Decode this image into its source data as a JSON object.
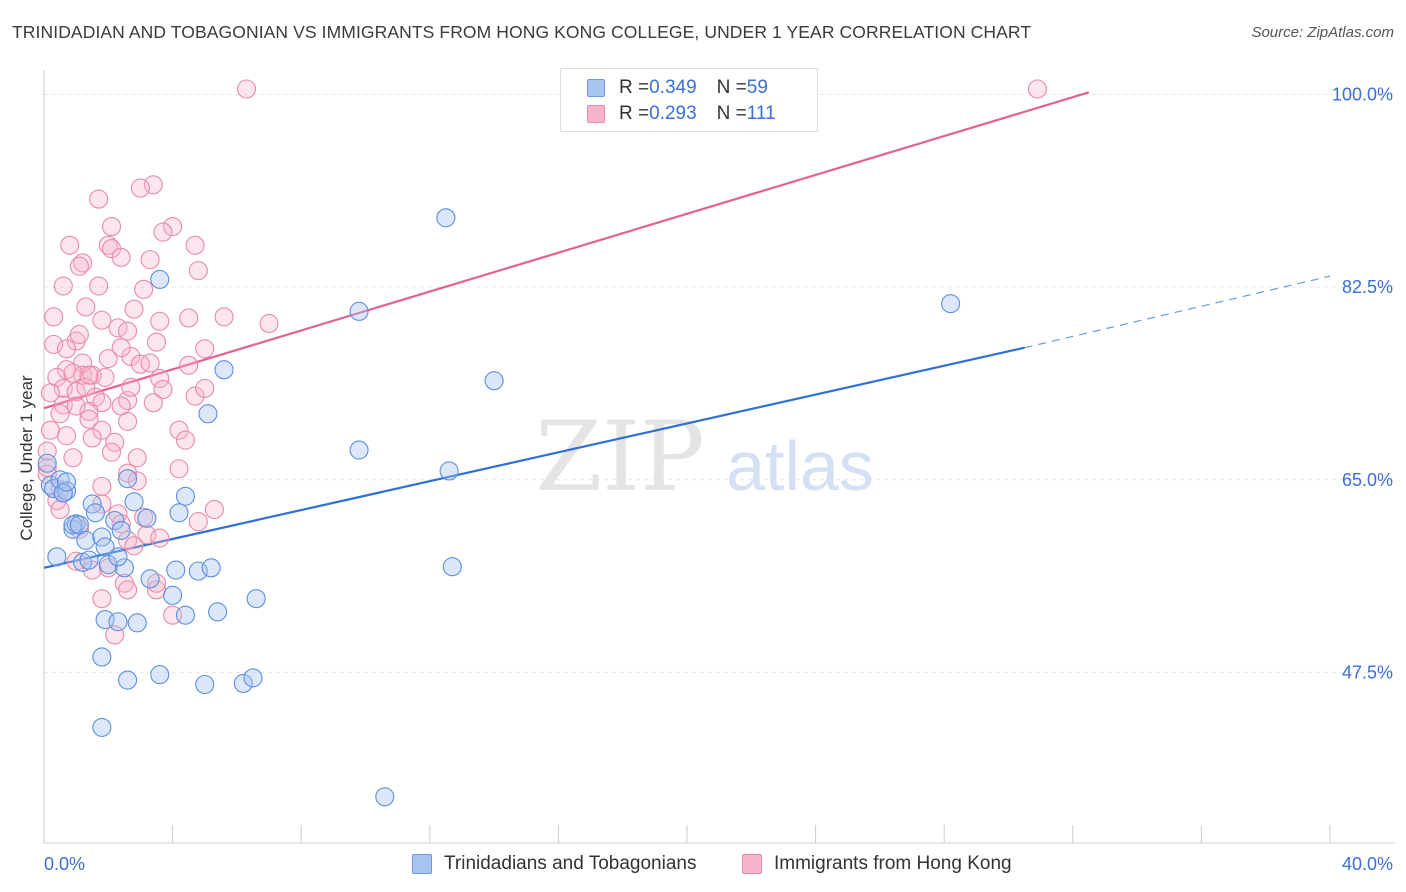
{
  "title": "TRINIDADIAN AND TOBAGONIAN VS IMMIGRANTS FROM HONG KONG COLLEGE, UNDER 1 YEAR CORRELATION CHART",
  "source": "Source: ZipAtlas.com",
  "watermark": {
    "zip": "ZIP",
    "atlas": "atlas"
  },
  "legend": {
    "row1": {
      "r_label": "R = ",
      "r_value": "0.349",
      "n_label": "N = ",
      "n_value": "59"
    },
    "row2": {
      "r_label": "R = ",
      "r_value": "0.293",
      "n_label": "N = ",
      "n_value": "111"
    }
  },
  "colors": {
    "blue": "#4a86e8",
    "blue_fill": "#a8c4f0",
    "pink": "#e86b94",
    "pink_fill": "#f5b5c8",
    "tick_label": "#3a6fd8"
  },
  "chart_data": {
    "type": "scatter",
    "title": "TRINIDADIAN AND TOBAGONIAN VS IMMIGRANTS FROM HONG KONG COLLEGE, UNDER 1 YEAR CORRELATION CHART",
    "xlabel": "",
    "ylabel": "College, Under 1 year",
    "xlim": [
      0,
      40
    ],
    "ylim": [
      32,
      101.5
    ],
    "x_tick_labels": [
      "0.0%",
      "40.0%"
    ],
    "y_ticks": [
      47.5,
      65.0,
      82.5,
      100.0
    ],
    "y_tick_labels": [
      "47.5%",
      "65.0%",
      "82.5%",
      "100.0%"
    ],
    "series": [
      {
        "name": "Trinidadians and Tobagonians",
        "color": "#4a86e8",
        "trend": {
          "x0": 0,
          "y0": 57.0,
          "x1": 30.5,
          "y1": 77.0,
          "dash_to_x": 40,
          "dash_to_y": 83.5
        },
        "points": [
          [
            0.1,
            66.5
          ],
          [
            0.2,
            64.5
          ],
          [
            0.3,
            64.2
          ],
          [
            0.5,
            65.0
          ],
          [
            0.6,
            63.8
          ],
          [
            0.4,
            58.0
          ],
          [
            0.9,
            60.5
          ],
          [
            1.0,
            61.0
          ],
          [
            1.3,
            59.5
          ],
          [
            1.2,
            57.5
          ],
          [
            1.4,
            57.7
          ],
          [
            1.5,
            62.8
          ],
          [
            1.6,
            62.0
          ],
          [
            1.8,
            59.8
          ],
          [
            2.0,
            57.3
          ],
          [
            2.2,
            61.3
          ],
          [
            2.4,
            60.4
          ],
          [
            2.5,
            57.0
          ],
          [
            2.8,
            63.0
          ],
          [
            2.6,
            65.1
          ],
          [
            3.2,
            61.5
          ],
          [
            3.3,
            56.0
          ],
          [
            3.6,
            83.2
          ],
          [
            4.2,
            62.0
          ],
          [
            4.4,
            63.5
          ],
          [
            4.1,
            56.8
          ],
          [
            4.4,
            52.7
          ],
          [
            4.0,
            54.5
          ],
          [
            4.8,
            56.7
          ],
          [
            5.2,
            57.0
          ],
          [
            5.4,
            53.0
          ],
          [
            5.1,
            71.0
          ],
          [
            5.6,
            75.0
          ],
          [
            6.6,
            54.2
          ],
          [
            6.2,
            46.5
          ],
          [
            6.5,
            47.0
          ],
          [
            1.8,
            48.9
          ],
          [
            2.6,
            46.8
          ],
          [
            3.6,
            47.3
          ],
          [
            5.0,
            46.4
          ],
          [
            1.9,
            52.3
          ],
          [
            2.9,
            52.0
          ],
          [
            2.3,
            52.1
          ],
          [
            1.8,
            42.5
          ],
          [
            10.6,
            36.2
          ],
          [
            9.8,
            67.7
          ],
          [
            12.6,
            65.8
          ],
          [
            12.5,
            88.8
          ],
          [
            12.7,
            57.1
          ],
          [
            14.0,
            74.0
          ],
          [
            9.8,
            80.3
          ],
          [
            28.2,
            81.0
          ],
          [
            0.9,
            60.9
          ],
          [
            0.7,
            64.0
          ],
          [
            2.3,
            58.0
          ],
          [
            1.9,
            58.9
          ],
          [
            1.1,
            60.9
          ],
          [
            0.6,
            63.8
          ],
          [
            0.7,
            64.8
          ]
        ]
      },
      {
        "name": "Immigrants from Hong Kong",
        "color": "#e86b94",
        "trend": {
          "x0": 0,
          "y0": 71.5,
          "x1": 32.5,
          "y1": 100.2
        },
        "points": [
          [
            6.3,
            100.5
          ],
          [
            30.9,
            100.5
          ],
          [
            3.4,
            91.8
          ],
          [
            3.0,
            91.5
          ],
          [
            1.7,
            90.5
          ],
          [
            2.1,
            88.0
          ],
          [
            4.0,
            88.0
          ],
          [
            3.7,
            87.5
          ],
          [
            0.8,
            86.3
          ],
          [
            2.0,
            86.3
          ],
          [
            2.1,
            86.0
          ],
          [
            4.7,
            86.3
          ],
          [
            2.4,
            85.2
          ],
          [
            3.3,
            85.0
          ],
          [
            1.2,
            84.7
          ],
          [
            1.1,
            84.4
          ],
          [
            4.8,
            84.0
          ],
          [
            0.6,
            82.6
          ],
          [
            1.7,
            82.6
          ],
          [
            3.1,
            82.3
          ],
          [
            1.3,
            80.7
          ],
          [
            2.8,
            80.5
          ],
          [
            0.3,
            79.8
          ],
          [
            1.8,
            79.5
          ],
          [
            3.6,
            79.4
          ],
          [
            4.5,
            79.7
          ],
          [
            5.6,
            79.8
          ],
          [
            7.0,
            79.2
          ],
          [
            2.3,
            78.8
          ],
          [
            2.6,
            78.5
          ],
          [
            3.5,
            77.5
          ],
          [
            1.0,
            77.6
          ],
          [
            0.3,
            77.3
          ],
          [
            0.7,
            76.9
          ],
          [
            2.7,
            76.2
          ],
          [
            5.0,
            76.9
          ],
          [
            2.0,
            76.0
          ],
          [
            1.2,
            75.6
          ],
          [
            3.0,
            75.5
          ],
          [
            3.3,
            75.6
          ],
          [
            4.5,
            75.4
          ],
          [
            0.7,
            75.0
          ],
          [
            0.4,
            74.3
          ],
          [
            1.2,
            74.5
          ],
          [
            1.5,
            74.5
          ],
          [
            1.9,
            74.3
          ],
          [
            3.6,
            74.2
          ],
          [
            0.6,
            73.3
          ],
          [
            1.0,
            73.0
          ],
          [
            1.3,
            73.4
          ],
          [
            0.2,
            72.9
          ],
          [
            3.7,
            73.2
          ],
          [
            1.6,
            72.5
          ],
          [
            2.6,
            72.2
          ],
          [
            4.7,
            72.6
          ],
          [
            1.8,
            72.0
          ],
          [
            0.6,
            71.8
          ],
          [
            1.0,
            71.7
          ],
          [
            1.4,
            71.2
          ],
          [
            2.4,
            71.7
          ],
          [
            3.4,
            72.0
          ],
          [
            0.5,
            71.0
          ],
          [
            1.4,
            70.5
          ],
          [
            2.6,
            70.3
          ],
          [
            0.2,
            69.5
          ],
          [
            1.8,
            69.5
          ],
          [
            4.2,
            69.5
          ],
          [
            0.7,
            69.0
          ],
          [
            1.5,
            68.8
          ],
          [
            2.2,
            68.4
          ],
          [
            4.4,
            68.6
          ],
          [
            0.1,
            67.6
          ],
          [
            2.1,
            67.5
          ],
          [
            0.9,
            67.0
          ],
          [
            2.9,
            67.0
          ],
          [
            0.1,
            66.1
          ],
          [
            0.1,
            65.5
          ],
          [
            2.6,
            65.6
          ],
          [
            4.2,
            66.0
          ],
          [
            2.9,
            64.9
          ],
          [
            0.4,
            63.1
          ],
          [
            1.8,
            62.8
          ],
          [
            0.5,
            62.3
          ],
          [
            2.3,
            61.9
          ],
          [
            5.3,
            62.3
          ],
          [
            2.4,
            61.0
          ],
          [
            3.1,
            61.6
          ],
          [
            4.8,
            61.2
          ],
          [
            1.1,
            60.5
          ],
          [
            3.2,
            60.0
          ],
          [
            3.6,
            59.7
          ],
          [
            2.6,
            59.5
          ],
          [
            2.0,
            57.0
          ],
          [
            1.5,
            56.8
          ],
          [
            1.0,
            57.6
          ],
          [
            2.5,
            55.6
          ],
          [
            3.5,
            55.0
          ],
          [
            1.8,
            54.2
          ],
          [
            2.6,
            55.0
          ],
          [
            4.0,
            52.7
          ],
          [
            2.2,
            50.9
          ],
          [
            2.8,
            59.0
          ],
          [
            3.5,
            55.6
          ],
          [
            0.5,
            64.1
          ],
          [
            1.8,
            64.4
          ],
          [
            2.7,
            73.4
          ],
          [
            1.4,
            74.5
          ],
          [
            2.4,
            77.0
          ],
          [
            1.1,
            78.2
          ],
          [
            5.0,
            73.3
          ],
          [
            0.9,
            74.7
          ]
        ]
      }
    ]
  },
  "bottom_legend": {
    "series1": "Trinidadians and Tobagonians",
    "series2": "Immigrants from Hong Kong"
  }
}
